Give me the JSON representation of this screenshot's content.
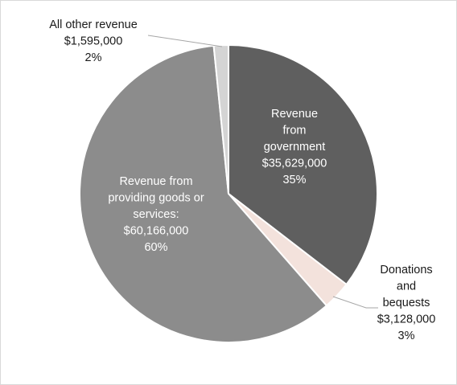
{
  "chart_data": {
    "type": "pie",
    "title": "",
    "slices": [
      {
        "name": "Revenue from government",
        "value": 35629000,
        "percent": 35,
        "color": "#5f5f5f",
        "label_lines": [
          "Revenue",
          "from",
          "government",
          "$35,629,000",
          "35%"
        ],
        "label_color": "light"
      },
      {
        "name": "Donations and bequests",
        "value": 3128000,
        "percent": 3,
        "color": "#f3e2dc",
        "label_lines": [
          "Donations",
          "and",
          "bequests",
          "$3,128,000",
          "3%"
        ],
        "label_color": "dark"
      },
      {
        "name": "Revenue from providing goods or services",
        "value": 60166000,
        "percent": 60,
        "color": "#8c8c8c",
        "label_lines": [
          "Revenue from",
          "providing goods or",
          "services:",
          "$60,166,000",
          "60%"
        ],
        "label_color": "light"
      },
      {
        "name": "All other revenue",
        "value": 1595000,
        "percent": 2,
        "color": "#d4d4d4",
        "label_lines": [
          "All other revenue",
          "$1,595,000",
          "2%"
        ],
        "label_color": "dark"
      }
    ]
  }
}
